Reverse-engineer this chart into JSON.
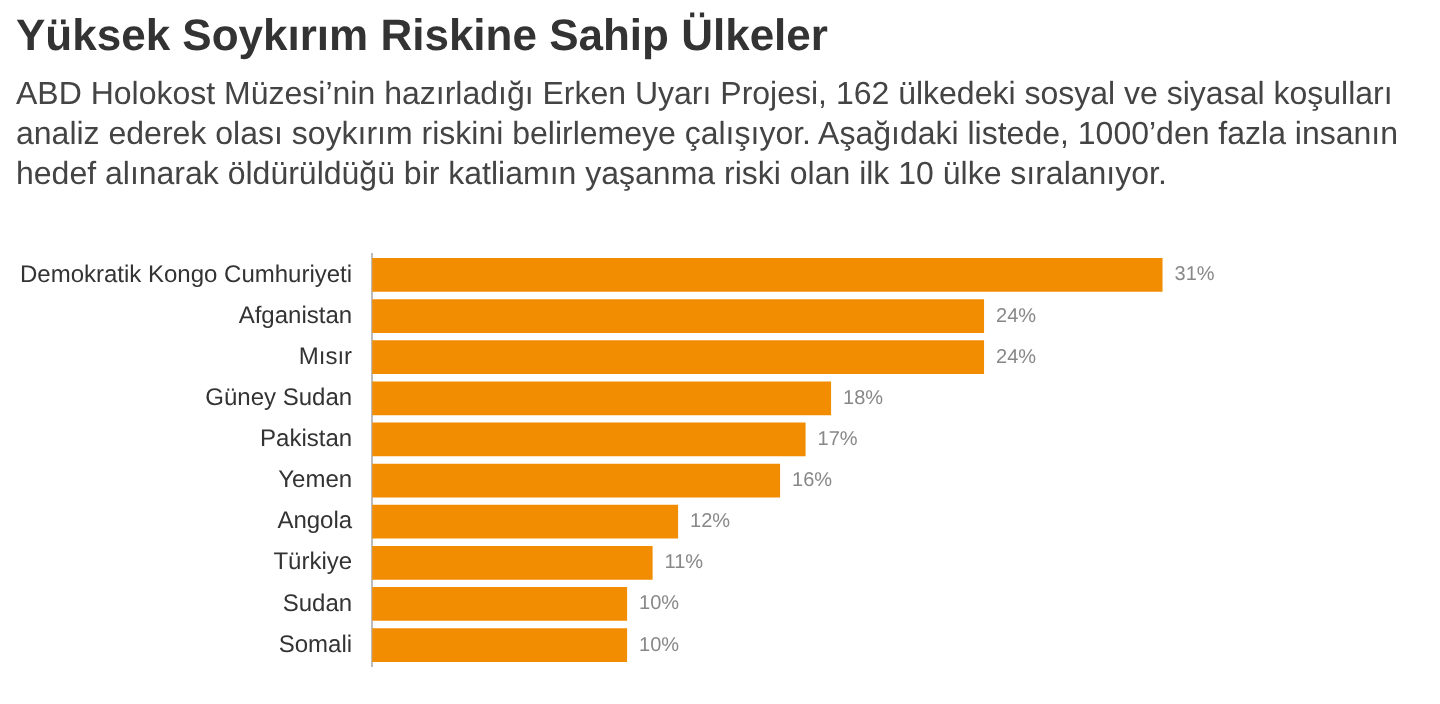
{
  "chart_data": {
    "type": "bar",
    "orientation": "horizontal",
    "tick_labels": "y",
    "title": "Yüksek Soykırım Riskine Sahip Ülkeler",
    "subtitle": "ABD Holokost Müzesi’nin hazırladığı Erken Uyarı Projesi, 162 ülkedeki sosyal ve siyasal koşulları analiz ederek olası soykırım riskini belirlemeye çalışıyor. Aşağıdaki listede, 1000’den fazla insanın hedef alınarak öldürüldüğü bir katliamın yaşanma riski olan ilk 10 ülke sıralanıyor.",
    "categories": [
      "Demokratik Kongo Cumhuriyeti",
      "Afganistan",
      "Mısır",
      "Güney Sudan",
      "Pakistan",
      "Yemen",
      "Angola",
      "Türkiye",
      "Sudan",
      "Somali"
    ],
    "values": [
      31,
      24,
      24,
      18,
      17,
      16,
      12,
      11,
      10,
      10
    ],
    "value_labels": [
      "31%",
      "24%",
      "24%",
      "18%",
      "17%",
      "16%",
      "12%",
      "11%",
      "10%",
      "10%"
    ],
    "color": "#f28c00",
    "legend": false
  }
}
